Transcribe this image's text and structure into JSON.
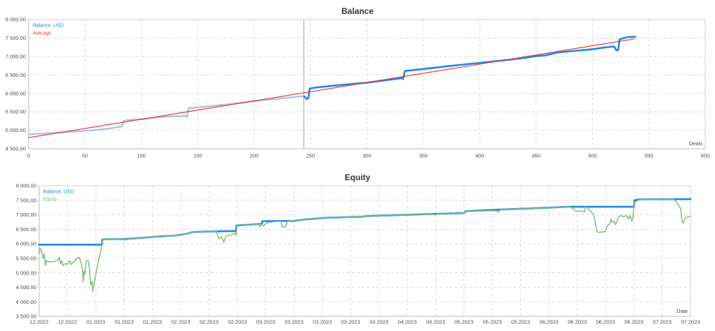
{
  "colors": {
    "balance": "#1e88e5",
    "balance_faded": "#a9c5e6",
    "average": "#e8383d",
    "equity": "#7dbf7d",
    "marker": "#a0a0a0"
  },
  "chart_data": [
    {
      "type": "line",
      "title": "Balance",
      "xlabel": "Deals",
      "ylabel": "",
      "xlim": [
        0,
        600
      ],
      "ylim": [
        4500,
        8000
      ],
      "grid": true,
      "legend_position": "top-left",
      "legend": [
        {
          "label": "Balance, USD",
          "color": "#1e88e5"
        },
        {
          "label": "Average",
          "color": "#e8383d"
        }
      ],
      "x_ticks": [
        "0",
        "50",
        "100",
        "150",
        "200",
        "250",
        "300",
        "350",
        "400",
        "450",
        "500",
        "550",
        "600"
      ],
      "x_tick_values": [
        0,
        50,
        100,
        150,
        200,
        250,
        300,
        350,
        400,
        450,
        500,
        550,
        600
      ],
      "y_ticks": [
        "8 000.00",
        "7 500.00",
        "7 000.00",
        "6 500.00",
        "6 000.00",
        "5 500.00",
        "5 000.00",
        "4 500.00"
      ],
      "y_tick_values": [
        8000,
        7500,
        7000,
        6500,
        6000,
        5500,
        5000,
        4500
      ],
      "marker_x": 244,
      "series": [
        {
          "name": "Balance, USD (before marker)",
          "color": "#a9c5e6",
          "width": 2.4,
          "points": [
            [
              0,
              4890
            ],
            [
              10,
              4905
            ],
            [
              20,
              4925
            ],
            [
              30,
              4945
            ],
            [
              40,
              4965
            ],
            [
              50,
              4985
            ],
            [
              60,
              5010
            ],
            [
              65,
              5025
            ],
            [
              70,
              5045
            ],
            [
              75,
              5065
            ],
            [
              80,
              5090
            ],
            [
              83,
              5110
            ],
            [
              84,
              5250
            ],
            [
              87,
              5275
            ],
            [
              100,
              5300
            ],
            [
              120,
              5365
            ],
            [
              139.5,
              5390
            ],
            [
              140.5,
              5350
            ],
            [
              141.8,
              5597
            ],
            [
              150,
              5620
            ],
            [
              160,
              5650
            ],
            [
              180,
              5715
            ],
            [
              200,
              5786
            ],
            [
              220,
              5850
            ],
            [
              243,
              5925
            ],
            [
              244.5,
              5915
            ]
          ]
        },
        {
          "name": "Balance, USD",
          "color": "#1e88e5",
          "width": 2.6,
          "points": [
            [
              244.5,
              5915
            ],
            [
              246.5,
              5850
            ],
            [
              248,
              5865
            ],
            [
              249.3,
              6130
            ],
            [
              255,
              6160
            ],
            [
              272,
              6215
            ],
            [
              300,
              6290
            ],
            [
              320,
              6370
            ],
            [
              331,
              6415
            ],
            [
              332,
              6386
            ],
            [
              333.7,
              6606
            ],
            [
              350,
              6660
            ],
            [
              370,
              6730
            ],
            [
              400,
              6827
            ],
            [
              420,
              6890
            ],
            [
              440,
              6960
            ],
            [
              449,
              7004
            ],
            [
              458,
              7029
            ],
            [
              470,
              7110
            ],
            [
              480,
              7140
            ],
            [
              499,
              7193
            ],
            [
              510,
              7240
            ],
            [
              517.5,
              7268
            ],
            [
              519.5,
              7265
            ],
            [
              521.2,
              7162
            ],
            [
              522.8,
              7175
            ],
            [
              524,
              7458
            ],
            [
              528.8,
              7508
            ],
            [
              533,
              7528
            ],
            [
              538,
              7533
            ]
          ]
        },
        {
          "name": "Average",
          "color": "#e8383d",
          "width": 1.2,
          "points": [
            [
              0,
              4800
            ],
            [
              537,
              7475
            ]
          ]
        }
      ]
    },
    {
      "type": "line",
      "title": "Equity",
      "xlabel": "Date",
      "ylabel": "",
      "xlim": [
        0,
        23
      ],
      "ylim": [
        3500,
        8000
      ],
      "grid": true,
      "legend_position": "top-left",
      "legend": [
        {
          "label": "Balance, USD",
          "color": "#1e88e5"
        },
        {
          "label": "Equity",
          "color": "#7dbf7d"
        }
      ],
      "categories": [
        "12.2022",
        "12.2022",
        "01.2023",
        "01.2023",
        "01.2023",
        "02.2023",
        "02.2023",
        "02.2023",
        "03.2023",
        "03.2023",
        "03.2023",
        "03.2023",
        "04.2023",
        "04.2023",
        "04.2023",
        "05.2023",
        "05.2023",
        "05.2023",
        "06.2023",
        "06.2023",
        "06.2023",
        "06.2023",
        "07.2023",
        "07.2023"
      ],
      "x_ticks": [
        "12.2022",
        "12.2022",
        "01.2023",
        "01.2023",
        "01.2023",
        "02.2023",
        "02.2023",
        "02.2023",
        "03.2023",
        "03.2023",
        "03.2023",
        "03.2023",
        "04.2023",
        "04.2023",
        "04.2023",
        "05.2023",
        "05.2023",
        "05.2023",
        "06.2023",
        "06.2023",
        "06.2023",
        "06.2023",
        "07.2023",
        "07.2023"
      ],
      "x_tick_values": [
        0,
        1,
        2,
        3,
        4,
        5,
        6,
        7,
        8,
        9,
        10,
        11,
        12,
        13,
        14,
        15,
        16,
        17,
        18,
        19,
        20,
        21,
        22,
        23
      ],
      "y_ticks": [
        "8 000.00",
        "7 500.00",
        "7 000.00",
        "6 500.00",
        "6 000.00",
        "5 500.00",
        "5 000.00",
        "4 500.00",
        "4 000.00",
        "3 500.00"
      ],
      "y_tick_values": [
        8000,
        7500,
        7000,
        6500,
        6000,
        5500,
        5000,
        4500,
        4000,
        3500
      ],
      "series": [
        {
          "name": "Balance, USD",
          "color": "#1e88e5",
          "width": 2.6,
          "points": [
            [
              0,
              5970
            ],
            [
              2.22,
              5970
            ],
            [
              2.23,
              6160
            ],
            [
              3.01,
              6165
            ],
            [
              3.55,
              6200
            ],
            [
              4.29,
              6255
            ],
            [
              4.78,
              6280
            ],
            [
              4.98,
              6310
            ],
            [
              5.23,
              6350
            ],
            [
              5.42,
              6405
            ],
            [
              6.02,
              6425
            ],
            [
              6.95,
              6440
            ],
            [
              6.97,
              6630
            ],
            [
              7.49,
              6660
            ],
            [
              7.86,
              6690
            ],
            [
              7.88,
              6780
            ],
            [
              8.97,
              6790
            ],
            [
              9.42,
              6840
            ],
            [
              10.11,
              6895
            ],
            [
              11.44,
              6935
            ],
            [
              11.51,
              6950
            ],
            [
              12.25,
              6980
            ],
            [
              13.07,
              7000
            ],
            [
              13.9,
              7030
            ],
            [
              15.01,
              7060
            ],
            [
              15.06,
              7125
            ],
            [
              16.29,
              7180
            ],
            [
              16.86,
              7200
            ],
            [
              17.97,
              7245
            ],
            [
              18.66,
              7275
            ],
            [
              21.0,
              7275
            ],
            [
              21.02,
              7500
            ],
            [
              21.18,
              7530
            ],
            [
              23,
              7540
            ]
          ]
        },
        {
          "name": "Equity",
          "color": "#7dbf7d",
          "width": 1.5,
          "points": [
            [
              0,
              5657
            ],
            [
              0.03,
              5850
            ],
            [
              0.08,
              5780
            ],
            [
              0.14,
              5490
            ],
            [
              0.18,
              5660
            ],
            [
              0.22,
              5250
            ],
            [
              0.26,
              5415
            ],
            [
              0.35,
              5370
            ],
            [
              0.51,
              5390
            ],
            [
              0.63,
              5415
            ],
            [
              0.67,
              5440
            ],
            [
              0.71,
              5535
            ],
            [
              0.76,
              5320
            ],
            [
              0.8,
              5415
            ],
            [
              0.84,
              5250
            ],
            [
              0.92,
              5320
            ],
            [
              1.0,
              5295
            ],
            [
              1.08,
              5415
            ],
            [
              1.13,
              5295
            ],
            [
              1.21,
              5370
            ],
            [
              1.33,
              5490
            ],
            [
              1.41,
              5535
            ],
            [
              1.45,
              5440
            ],
            [
              1.49,
              5320
            ],
            [
              1.54,
              5055
            ],
            [
              1.56,
              4690
            ],
            [
              1.59,
              5055
            ],
            [
              1.62,
              4960
            ],
            [
              1.66,
              5415
            ],
            [
              1.73,
              5415
            ],
            [
              1.78,
              5125
            ],
            [
              1.82,
              4595
            ],
            [
              1.87,
              4715
            ],
            [
              1.89,
              4355
            ],
            [
              1.95,
              4690
            ],
            [
              2.03,
              5080
            ],
            [
              2.11,
              5490
            ],
            [
              2.19,
              5800
            ],
            [
              2.22,
              5970
            ],
            [
              2.24,
              6165
            ],
            [
              3.01,
              6165
            ],
            [
              3.06,
              6130
            ],
            [
              3.18,
              6170
            ],
            [
              3.55,
              6200
            ],
            [
              4.24,
              6250
            ],
            [
              4.31,
              6230
            ],
            [
              4.41,
              6260
            ],
            [
              4.78,
              6280
            ],
            [
              4.98,
              6310
            ],
            [
              5.23,
              6350
            ],
            [
              5.42,
              6405
            ],
            [
              6.02,
              6425
            ],
            [
              6.26,
              6430
            ],
            [
              6.3,
              6290
            ],
            [
              6.34,
              6170
            ],
            [
              6.43,
              6250
            ],
            [
              6.52,
              6050
            ],
            [
              6.59,
              6250
            ],
            [
              6.84,
              6335
            ],
            [
              6.92,
              6375
            ],
            [
              6.96,
              6290
            ],
            [
              6.98,
              6615
            ],
            [
              7.49,
              6660
            ],
            [
              7.78,
              6680
            ],
            [
              7.8,
              6575
            ],
            [
              7.82,
              6700
            ],
            [
              7.9,
              6615
            ],
            [
              7.99,
              6680
            ],
            [
              8.07,
              6735
            ],
            [
              8.48,
              6780
            ],
            [
              8.55,
              6775
            ],
            [
              8.58,
              6575
            ],
            [
              8.68,
              6575
            ],
            [
              8.74,
              6655
            ],
            [
              8.77,
              6780
            ],
            [
              9.42,
              6840
            ],
            [
              10.11,
              6895
            ],
            [
              11.44,
              6935
            ],
            [
              11.51,
              6950
            ],
            [
              12.25,
              6980
            ],
            [
              13.07,
              7000
            ],
            [
              13.9,
              7030
            ],
            [
              13.98,
              6990
            ],
            [
              14.05,
              7030
            ],
            [
              15.01,
              7060
            ],
            [
              15.06,
              7125
            ],
            [
              16.16,
              7140
            ],
            [
              16.2,
              7085
            ],
            [
              16.3,
              7180
            ],
            [
              16.86,
              7200
            ],
            [
              17.97,
              7245
            ],
            [
              18.66,
              7275
            ],
            [
              18.78,
              7260
            ],
            [
              18.87,
              7180
            ],
            [
              18.96,
              7125
            ],
            [
              19.16,
              7125
            ],
            [
              19.25,
              7100
            ],
            [
              19.29,
              7275
            ],
            [
              19.37,
              7220
            ],
            [
              19.45,
              7140
            ],
            [
              19.57,
              7020
            ],
            [
              19.61,
              6860
            ],
            [
              19.7,
              6415
            ],
            [
              19.74,
              6395
            ],
            [
              19.98,
              6415
            ],
            [
              20.07,
              6620
            ],
            [
              20.15,
              6700
            ],
            [
              20.19,
              6860
            ],
            [
              20.23,
              6740
            ],
            [
              20.31,
              6780
            ],
            [
              20.35,
              6655
            ],
            [
              20.44,
              6900
            ],
            [
              20.52,
              6980
            ],
            [
              20.64,
              6925
            ],
            [
              20.72,
              6980
            ],
            [
              20.81,
              6860
            ],
            [
              20.85,
              6980
            ],
            [
              20.93,
              6780
            ],
            [
              20.97,
              6900
            ],
            [
              21.01,
              7420
            ],
            [
              21.09,
              7460
            ],
            [
              21.18,
              7525
            ],
            [
              22.37,
              7540
            ],
            [
              22.49,
              7460
            ],
            [
              22.57,
              7340
            ],
            [
              22.65,
              7220
            ],
            [
              22.7,
              6780
            ],
            [
              22.74,
              6715
            ],
            [
              22.82,
              6900
            ],
            [
              22.98,
              6940
            ]
          ]
        }
      ]
    }
  ]
}
